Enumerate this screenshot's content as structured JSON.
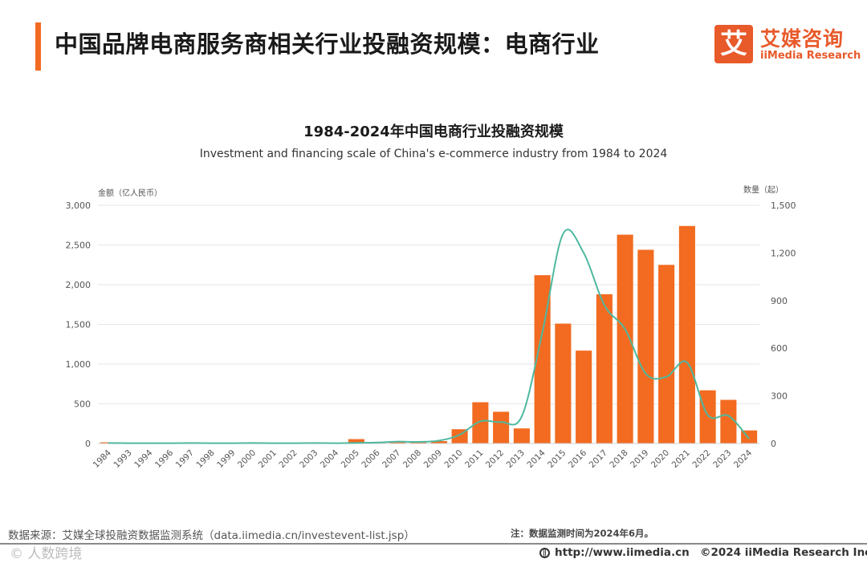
{
  "header": {
    "title": "中国品牌电商服务商相关行业投融资规模：电商行业",
    "logo_mark": "艾",
    "logo_cn": "艾媒咨询",
    "logo_en": "iiMedia Research"
  },
  "colors": {
    "accent": "#f26b21",
    "bar": "#f26b21",
    "line": "#4fb8a0",
    "grid": "#e6e6e6"
  },
  "chart_data": {
    "type": "bar",
    "title": "1984-2024年中国电商行业投融资规模",
    "subtitle": "Investment and financing scale of China's e-commerce industry from 1984 to 2024",
    "ylabel": "金额（亿人民币）",
    "y2label": "数量（起）",
    "ylim": [
      0,
      3000
    ],
    "y2lim": [
      0,
      1500
    ],
    "yticks": [
      "0",
      "500",
      "1,000",
      "1,500",
      "2,000",
      "2,500",
      "3,000"
    ],
    "y2ticks": [
      "0",
      "300",
      "600",
      "900",
      "1,200",
      "1,500"
    ],
    "grid": true,
    "categories": [
      "1984",
      "1993",
      "1994",
      "1996",
      "1997",
      "1998",
      "1999",
      "2000",
      "2001",
      "2002",
      "2003",
      "2004",
      "2005",
      "2006",
      "2007",
      "2008",
      "2009",
      "2010",
      "2011",
      "2012",
      "2013",
      "2014",
      "2015",
      "2016",
      "2017",
      "2018",
      "2019",
      "2020",
      "2021",
      "2022",
      "2023",
      "2024"
    ],
    "series": [
      {
        "name": "金额（亿人民币）",
        "type": "bar",
        "axis": "left",
        "values": [
          5,
          0,
          0,
          0,
          0,
          0,
          0,
          0,
          0,
          0,
          0,
          0,
          55,
          5,
          10,
          10,
          30,
          180,
          520,
          400,
          190,
          2120,
          1510,
          1170,
          1880,
          2630,
          2440,
          2250,
          2740,
          670,
          550,
          165
        ]
      },
      {
        "name": "数量（起）",
        "type": "line",
        "axis": "right",
        "values": [
          3,
          2,
          2,
          2,
          3,
          2,
          2,
          3,
          2,
          2,
          3,
          2,
          4,
          6,
          12,
          10,
          18,
          55,
          140,
          135,
          170,
          700,
          1320,
          1200,
          870,
          720,
          440,
          420,
          510,
          180,
          175,
          30
        ]
      }
    ]
  },
  "footer": {
    "source": "数据来源：艾媒全球投融资数据监测系统（data.iimedia.cn/investevent-list.jsp）",
    "note": "注：数据监测时间为2024年6月。",
    "watermark": "© 人数跨境",
    "url": "http://www.iimedia.cn",
    "copyright": "©2024  iiMedia Research  Inc"
  }
}
